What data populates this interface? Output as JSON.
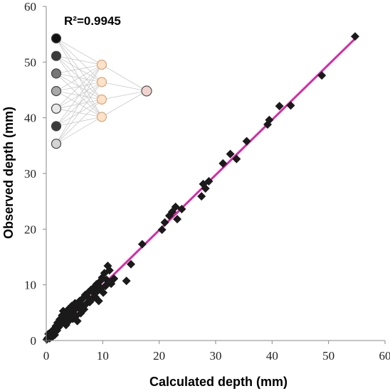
{
  "chart_data": {
    "type": "scatter",
    "title": "",
    "xlabel": "Calculated depth (mm)",
    "ylabel": "Observed depth (mm)",
    "xlim": [
      0,
      60
    ],
    "ylim": [
      0,
      60
    ],
    "x_ticks": [
      0,
      10,
      20,
      30,
      40,
      50,
      60
    ],
    "y_ticks": [
      0,
      10,
      20,
      30,
      40,
      50,
      60
    ],
    "grid": false,
    "annotation": "R²=0.9945",
    "marker": "diamond",
    "marker_color": "#1a1a1a",
    "fit_line": {
      "x": [
        0,
        55
      ],
      "y": [
        0,
        54.5
      ],
      "color": "#d62aa8"
    },
    "points": [
      [
        0.1,
        0.2
      ],
      [
        0.3,
        0.5
      ],
      [
        0.4,
        1.2
      ],
      [
        0.6,
        0.4
      ],
      [
        0.8,
        0.9
      ],
      [
        0.9,
        1.6
      ],
      [
        1.1,
        0.7
      ],
      [
        1.2,
        1.4
      ],
      [
        1.4,
        2.1
      ],
      [
        1.5,
        1.0
      ],
      [
        1.7,
        2.6
      ],
      [
        1.9,
        1.8
      ],
      [
        2.0,
        3.2
      ],
      [
        2.2,
        2.4
      ],
      [
        2.4,
        3.8
      ],
      [
        2.6,
        2.9
      ],
      [
        2.8,
        4.5
      ],
      [
        3.0,
        5.3
      ],
      [
        3.1,
        3.4
      ],
      [
        3.3,
        4.9
      ],
      [
        3.5,
        2.8
      ],
      [
        3.7,
        4.1
      ],
      [
        3.9,
        5.6
      ],
      [
        4.1,
        3.6
      ],
      [
        4.3,
        4.8
      ],
      [
        4.5,
        6.2
      ],
      [
        4.7,
        3.9
      ],
      [
        4.9,
        5.4
      ],
      [
        5.1,
        6.7
      ],
      [
        5.3,
        4.4
      ],
      [
        5.5,
        3.5
      ],
      [
        5.7,
        5.9
      ],
      [
        5.9,
        7.1
      ],
      [
        6.1,
        4.9
      ],
      [
        6.3,
        6.4
      ],
      [
        6.5,
        7.6
      ],
      [
        6.7,
        5.6
      ],
      [
        6.9,
        8.2
      ],
      [
        7.1,
        6.6
      ],
      [
        7.3,
        7.9
      ],
      [
        7.5,
        8.7
      ],
      [
        7.7,
        6.9
      ],
      [
        7.9,
        9.1
      ],
      [
        8.1,
        7.4
      ],
      [
        8.3,
        8.6
      ],
      [
        8.5,
        9.6
      ],
      [
        8.7,
        7.8
      ],
      [
        8.9,
        10.1
      ],
      [
        9.1,
        8.9
      ],
      [
        9.3,
        7.1
      ],
      [
        9.5,
        10.6
      ],
      [
        9.7,
        9.4
      ],
      [
        9.9,
        11.3
      ],
      [
        10.1,
        8.6
      ],
      [
        10.3,
        12.1
      ],
      [
        10.5,
        9.8
      ],
      [
        10.7,
        10.9
      ],
      [
        10.9,
        13.4
      ],
      [
        11.2,
        12.6
      ],
      [
        11.5,
        10.2
      ],
      [
        12.0,
        11.1
      ],
      [
        14.2,
        10.7
      ],
      [
        15.0,
        13.7
      ],
      [
        17.0,
        17.3
      ],
      [
        20.5,
        19.9
      ],
      [
        21.0,
        21.2
      ],
      [
        21.8,
        22.4
      ],
      [
        22.3,
        23.1
      ],
      [
        22.9,
        24.0
      ],
      [
        23.2,
        21.8
      ],
      [
        24.0,
        23.6
      ],
      [
        27.5,
        25.9
      ],
      [
        27.8,
        28.1
      ],
      [
        28.2,
        27.3
      ],
      [
        28.8,
        28.6
      ],
      [
        31.3,
        31.8
      ],
      [
        32.6,
        33.5
      ],
      [
        33.7,
        32.6
      ],
      [
        35.5,
        35.8
      ],
      [
        39.2,
        38.8
      ],
      [
        39.5,
        39.6
      ],
      [
        41.3,
        42.1
      ],
      [
        43.3,
        42.2
      ],
      [
        48.8,
        47.6
      ],
      [
        54.7,
        54.6
      ]
    ]
  },
  "network_icon": {
    "input_layer": [
      "#111111",
      "#3a3a3a",
      "#777777",
      "#a8a8a8",
      "#e8e8e8",
      "#3a3a3a",
      "#d4d4d4"
    ],
    "hidden_layer": [
      "#fbe2c8",
      "#fbe2c8",
      "#fbe2c8",
      "#fbe2c8"
    ],
    "output_layer": [
      "#f2d2cc"
    ]
  }
}
